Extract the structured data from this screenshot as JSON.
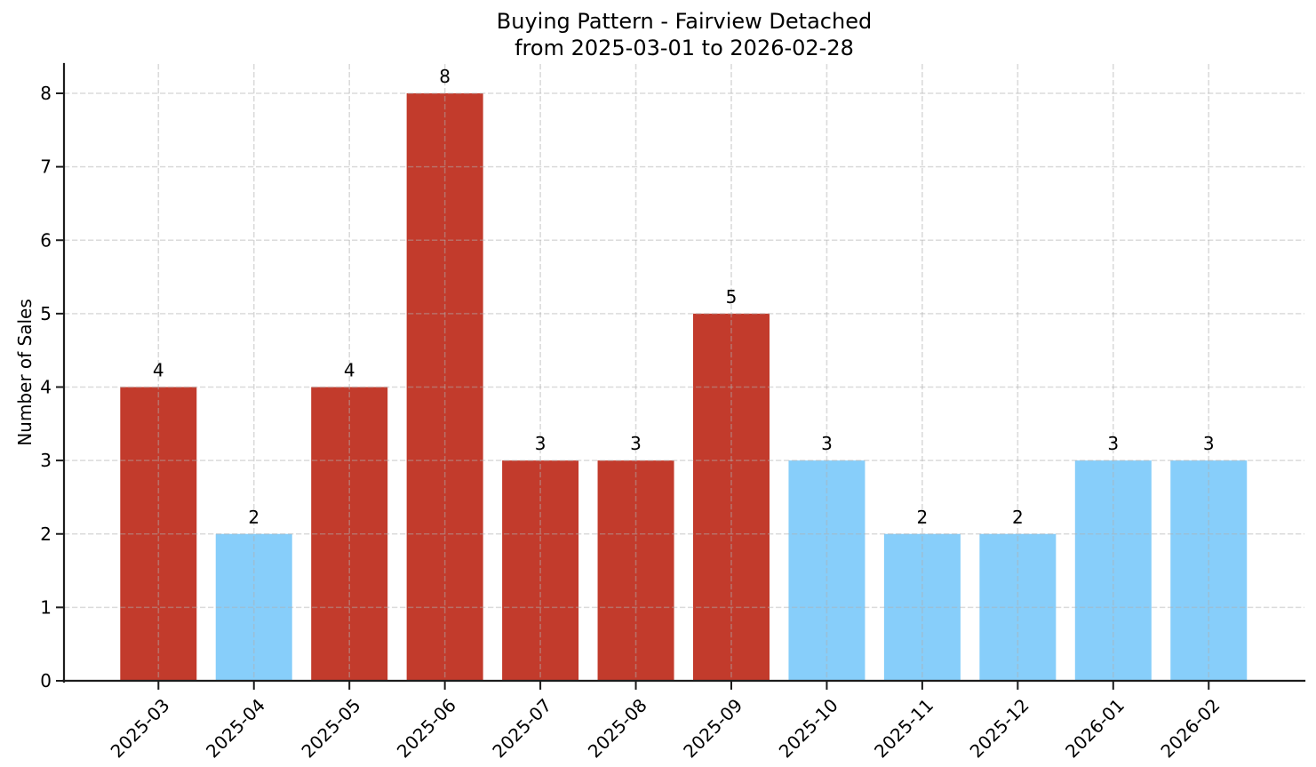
{
  "chart_data": {
    "type": "bar",
    "title": "Buying Pattern - Fairview Detached",
    "subtitle": "from 2025-03-01 to 2026-02-28",
    "xlabel": "",
    "ylabel": "Number of Sales",
    "categories": [
      "2025-03",
      "2025-04",
      "2025-05",
      "2025-06",
      "2025-07",
      "2025-08",
      "2025-09",
      "2025-10",
      "2025-11",
      "2025-12",
      "2026-01",
      "2026-02"
    ],
    "values": [
      4,
      2,
      4,
      8,
      3,
      3,
      5,
      3,
      2,
      2,
      3,
      3
    ],
    "bar_value_labels": [
      "4",
      "2",
      "4",
      "8",
      "3",
      "3",
      "5",
      "3",
      "2",
      "2",
      "3",
      "3"
    ],
    "bar_colors": [
      "#C23B2C",
      "#87CEFA",
      "#C23B2C",
      "#C23B2C",
      "#C23B2C",
      "#C23B2C",
      "#C23B2C",
      "#87CEFA",
      "#87CEFA",
      "#87CEFA",
      "#87CEFA",
      "#87CEFA"
    ],
    "yticks": [
      0,
      1,
      2,
      3,
      4,
      5,
      6,
      7,
      8
    ],
    "ylim": [
      0,
      8.4
    ],
    "grid": {
      "show": true,
      "style": "dashed",
      "axes": "both",
      "drawn_above_bars": true
    },
    "legend": {
      "show": false
    },
    "palette": {
      "high_season_bar": "#C23B2C",
      "low_season_bar": "#87CEFA",
      "axis_line": "#1c1c1c",
      "grid_line": "#b0b0b0",
      "text": "#000000"
    }
  }
}
